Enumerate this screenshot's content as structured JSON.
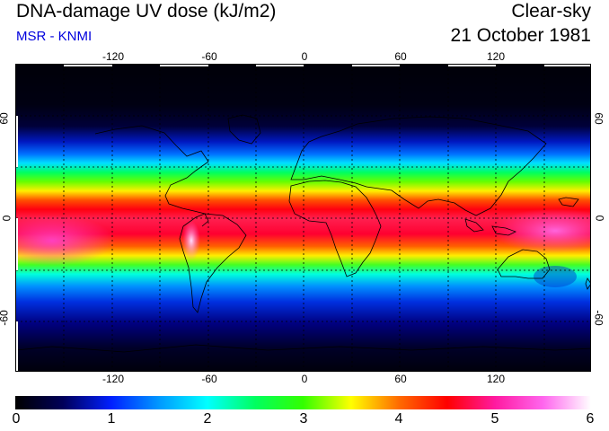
{
  "header": {
    "title": "DNA-damage UV dose (kJ/m2)",
    "credit": "MSR - KNMI",
    "condition": "Clear-sky",
    "date": "21 October 1981"
  },
  "map": {
    "projection": "equirectangular",
    "lon_range": [
      -180,
      180
    ],
    "lat_range": [
      -90,
      90
    ],
    "lon_ticks": [
      "-120",
      "-60",
      "0",
      "60",
      "120"
    ],
    "lat_ticks": [
      "60",
      "0",
      "-60"
    ],
    "grid_lines": "dotted every 30 degrees",
    "coastlines": true
  },
  "colorbar": {
    "min": 0,
    "max": 6,
    "labels": [
      "0",
      "1",
      "2",
      "3",
      "4",
      "5",
      "6"
    ],
    "stops": [
      {
        "value": 0,
        "color": "#000000"
      },
      {
        "value": 0.5,
        "color": "#00005a"
      },
      {
        "value": 1,
        "color": "#0020ff"
      },
      {
        "value": 1.5,
        "color": "#0099ff"
      },
      {
        "value": 2,
        "color": "#00ffff"
      },
      {
        "value": 2.5,
        "color": "#00ff60"
      },
      {
        "value": 3,
        "color": "#33ff00"
      },
      {
        "value": 3.5,
        "color": "#ffff00"
      },
      {
        "value": 4,
        "color": "#ff6a00"
      },
      {
        "value": 4.5,
        "color": "#ff0000"
      },
      {
        "value": 5,
        "color": "#ff1aa0"
      },
      {
        "value": 5.5,
        "color": "#ff66ee"
      },
      {
        "value": 6,
        "color": "#ffffff"
      }
    ]
  }
}
